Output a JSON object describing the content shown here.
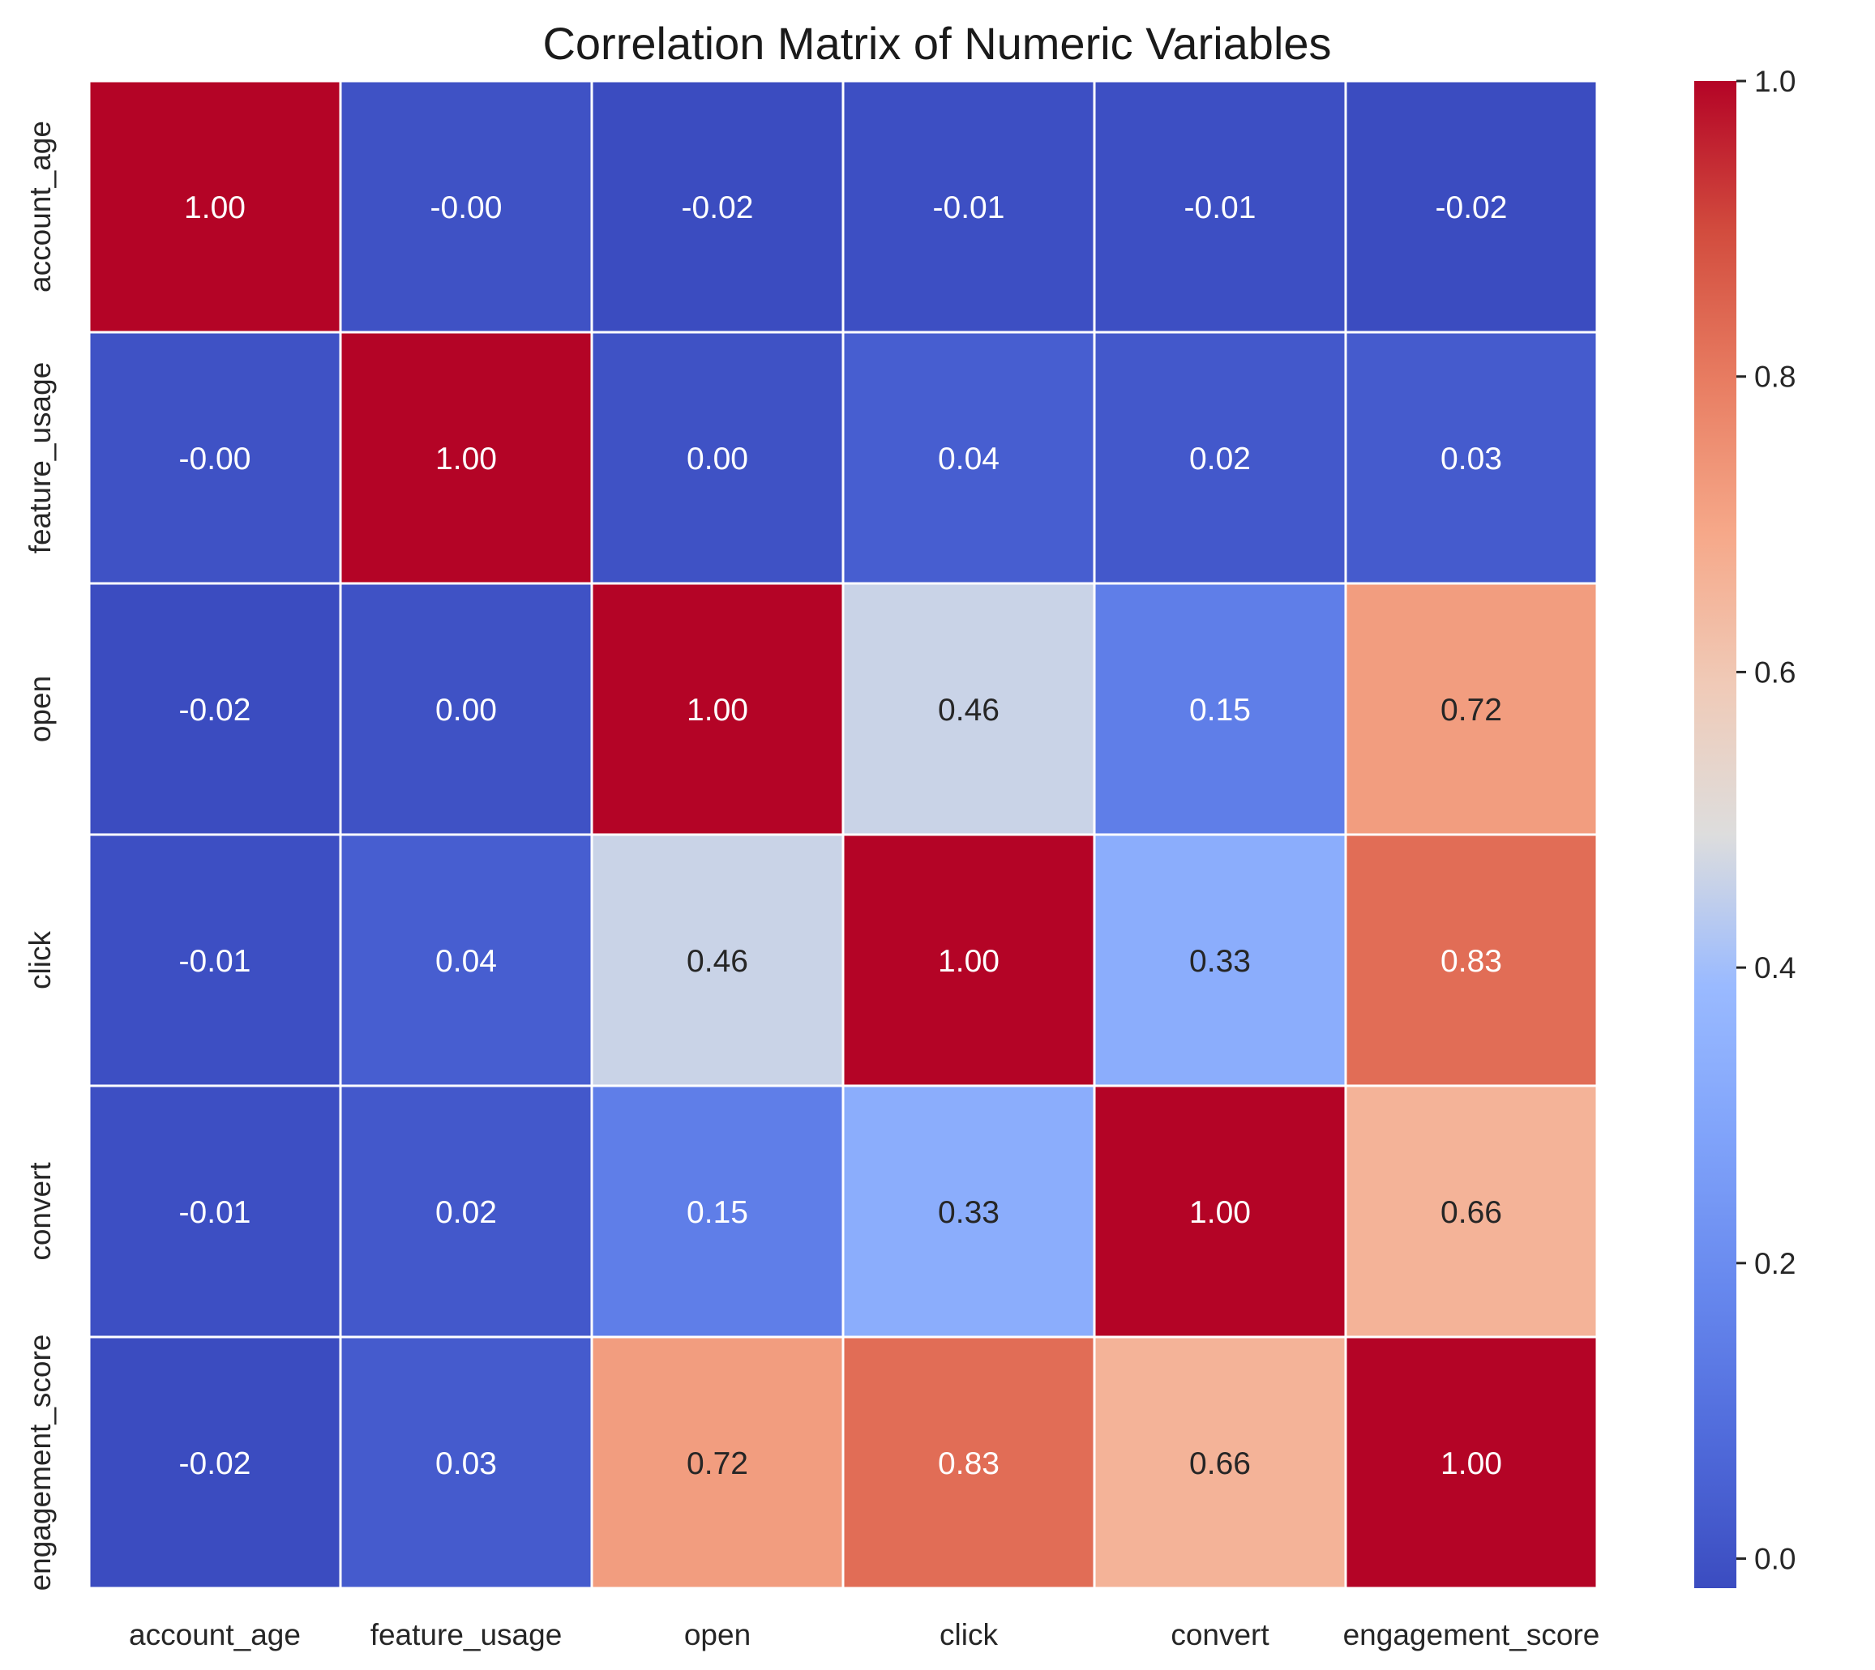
{
  "chart_data": {
    "type": "heatmap",
    "title": "Correlation Matrix of Numeric Variables",
    "xlabel": "",
    "ylabel": "",
    "x_labels": [
      "account_age",
      "feature_usage",
      "open",
      "click",
      "convert",
      "engagement_score"
    ],
    "y_labels": [
      "account_age",
      "feature_usage",
      "open",
      "click",
      "convert",
      "engagement_score"
    ],
    "values": [
      [
        1.0,
        -0.0,
        -0.02,
        -0.01,
        -0.01,
        -0.02
      ],
      [
        -0.0,
        1.0,
        0.0,
        0.04,
        0.02,
        0.03
      ],
      [
        -0.02,
        0.0,
        1.0,
        0.46,
        0.15,
        0.72
      ],
      [
        -0.01,
        0.04,
        0.46,
        1.0,
        0.33,
        0.83
      ],
      [
        -0.01,
        0.02,
        0.15,
        0.33,
        1.0,
        0.66
      ],
      [
        -0.02,
        0.03,
        0.72,
        0.83,
        0.66,
        1.0
      ]
    ],
    "annotation_format": "0.00",
    "colormap": "coolwarm",
    "vmin": -0.02,
    "vmax": 1.0,
    "colorbar": {
      "ticks": [
        0.0,
        0.2,
        0.4,
        0.6,
        0.8,
        1.0
      ],
      "tick_labels": [
        "0.0",
        "0.2",
        "0.4",
        "0.6",
        "0.8",
        "1.0"
      ],
      "placement": "right"
    },
    "colors": {
      "low": "#3b4cc0",
      "mid": "#dddddd",
      "high": "#b40426",
      "grid": "#ffffff"
    }
  }
}
